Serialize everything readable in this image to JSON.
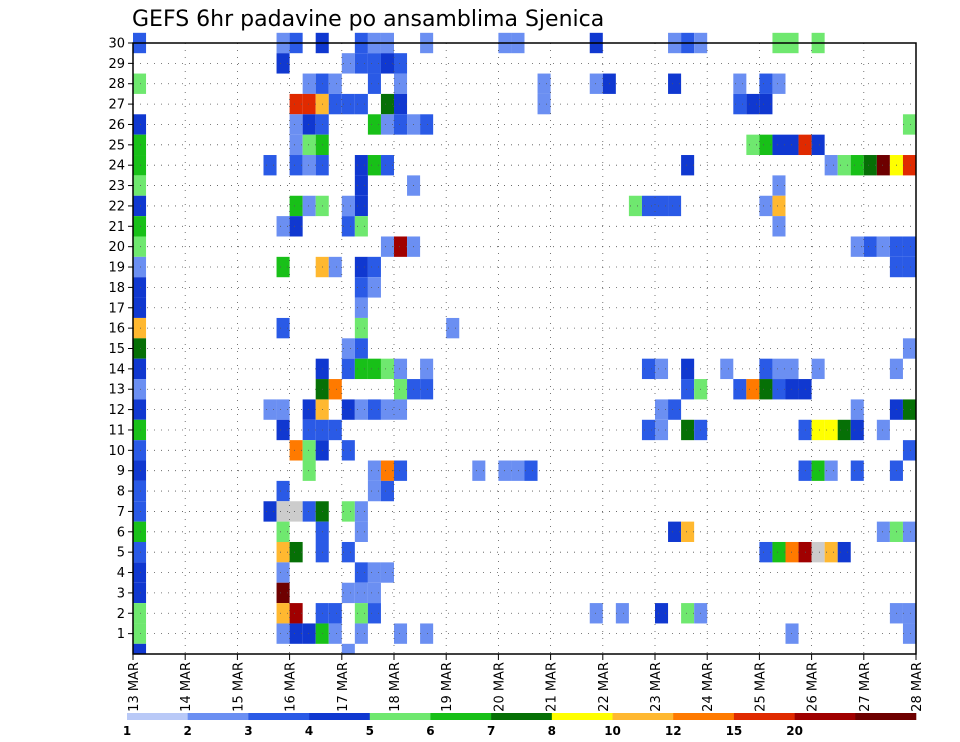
{
  "chart_data": {
    "type": "heatmap",
    "title": "GEFS 6hr padavine po ansamblima Sjenica",
    "xlabel": "",
    "ylabel": "",
    "x_range": [
      0,
      60
    ],
    "y_range": [
      0,
      30
    ],
    "x_ticks": [
      {
        "x": 0,
        "label": "13 MAR"
      },
      {
        "x": 4,
        "label": "14 MAR"
      },
      {
        "x": 8,
        "label": "15 MAR"
      },
      {
        "x": 12,
        "label": "16 MAR"
      },
      {
        "x": 16,
        "label": "17 MAR"
      },
      {
        "x": 20,
        "label": "18 MAR"
      },
      {
        "x": 24,
        "label": "19 MAR"
      },
      {
        "x": 28,
        "label": "20 MAR"
      },
      {
        "x": 32,
        "label": "21 MAR"
      },
      {
        "x": 36,
        "label": "22 MAR"
      },
      {
        "x": 40,
        "label": "23 MAR"
      },
      {
        "x": 44,
        "label": "24 MAR"
      },
      {
        "x": 48,
        "label": "25 MAR"
      },
      {
        "x": 52,
        "label": "26 MAR"
      },
      {
        "x": 56,
        "label": "27 MAR"
      },
      {
        "x": 60,
        "label": "28 MAR"
      }
    ],
    "y_ticks": [
      "1",
      "2",
      "3",
      "4",
      "5",
      "6",
      "7",
      "8",
      "9",
      "10",
      "11",
      "12",
      "13",
      "14",
      "15",
      "16",
      "17",
      "18",
      "19",
      "20",
      "21",
      "22",
      "23",
      "24",
      "25",
      "26",
      "27",
      "28",
      "29",
      "30"
    ],
    "grid": true,
    "colorbar": {
      "placement": "bottom",
      "labels": [
        "1",
        "2",
        "3",
        "4",
        "5",
        "6",
        "7",
        "8",
        "10",
        "12",
        "15",
        "20"
      ],
      "colors": [
        "#b9c9f7",
        "#6b8ff2",
        "#2a5ae6",
        "#1038d0",
        "#6fe86f",
        "#18c018",
        "#067006",
        "#ffff00",
        "#ffb830",
        "#ff7a00",
        "#e02a00",
        "#a00000",
        "#6e0000"
      ]
    },
    "cells": [
      [
        0,
        30,
        2
      ],
      [
        11,
        30,
        1
      ],
      [
        12,
        30,
        2
      ],
      [
        14,
        30,
        3
      ],
      [
        17,
        30,
        2
      ],
      [
        18,
        30,
        1
      ],
      [
        19,
        30,
        1
      ],
      [
        22,
        30,
        1
      ],
      [
        28,
        30,
        1
      ],
      [
        29,
        30,
        1
      ],
      [
        35,
        30,
        3
      ],
      [
        41,
        30,
        1
      ],
      [
        42,
        30,
        2
      ],
      [
        43,
        30,
        1
      ],
      [
        49,
        30,
        4
      ],
      [
        50,
        30,
        4
      ],
      [
        52,
        30,
        4
      ],
      [
        11,
        29,
        3
      ],
      [
        16,
        29,
        1
      ],
      [
        17,
        29,
        2
      ],
      [
        18,
        29,
        2
      ],
      [
        19,
        29,
        3
      ],
      [
        20,
        29,
        2
      ],
      [
        0,
        28,
        4
      ],
      [
        13,
        28,
        1
      ],
      [
        14,
        28,
        2
      ],
      [
        15,
        28,
        1
      ],
      [
        18,
        28,
        2
      ],
      [
        20,
        28,
        1
      ],
      [
        31,
        28,
        1
      ],
      [
        35,
        28,
        1
      ],
      [
        36,
        28,
        3
      ],
      [
        41,
        28,
        3
      ],
      [
        46,
        28,
        1
      ],
      [
        48,
        28,
        2
      ],
      [
        49,
        28,
        1
      ],
      [
        12,
        27,
        10
      ],
      [
        13,
        27,
        10
      ],
      [
        14,
        27,
        8
      ],
      [
        15,
        27,
        2
      ],
      [
        16,
        27,
        2
      ],
      [
        17,
        27,
        2
      ],
      [
        19,
        27,
        6
      ],
      [
        20,
        27,
        3
      ],
      [
        31,
        27,
        1
      ],
      [
        46,
        27,
        2
      ],
      [
        47,
        27,
        3
      ],
      [
        48,
        27,
        3
      ],
      [
        0,
        26,
        3
      ],
      [
        12,
        26,
        1
      ],
      [
        13,
        26,
        3
      ],
      [
        14,
        26,
        2
      ],
      [
        18,
        26,
        5
      ],
      [
        19,
        26,
        1
      ],
      [
        20,
        26,
        2
      ],
      [
        21,
        26,
        1
      ],
      [
        22,
        26,
        2
      ],
      [
        59,
        26,
        4
      ],
      [
        60,
        26,
        3
      ],
      [
        0,
        25,
        5
      ],
      [
        12,
        25,
        1
      ],
      [
        13,
        25,
        4
      ],
      [
        14,
        25,
        5
      ],
      [
        47,
        25,
        4
      ],
      [
        48,
        25,
        5
      ],
      [
        49,
        25,
        3
      ],
      [
        50,
        25,
        3
      ],
      [
        51,
        25,
        10
      ],
      [
        52,
        25,
        3
      ],
      [
        0,
        24,
        5
      ],
      [
        10,
        24,
        2
      ],
      [
        12,
        24,
        2
      ],
      [
        13,
        24,
        1
      ],
      [
        14,
        24,
        2
      ],
      [
        17,
        24,
        3
      ],
      [
        18,
        24,
        5
      ],
      [
        19,
        24,
        2
      ],
      [
        42,
        24,
        3
      ],
      [
        53,
        24,
        1
      ],
      [
        54,
        24,
        4
      ],
      [
        55,
        24,
        5
      ],
      [
        56,
        24,
        6
      ],
      [
        57,
        24,
        12
      ],
      [
        58,
        24,
        7
      ],
      [
        59,
        24,
        10
      ],
      [
        60,
        24,
        11
      ],
      [
        0,
        23,
        4
      ],
      [
        17,
        23,
        3
      ],
      [
        21,
        23,
        1
      ],
      [
        49,
        23,
        1
      ],
      [
        0,
        22,
        3
      ],
      [
        12,
        22,
        5
      ],
      [
        13,
        22,
        1
      ],
      [
        14,
        22,
        4
      ],
      [
        16,
        22,
        1
      ],
      [
        17,
        22,
        3
      ],
      [
        38,
        22,
        4
      ],
      [
        39,
        22,
        2
      ],
      [
        40,
        22,
        2
      ],
      [
        41,
        22,
        2
      ],
      [
        48,
        22,
        1
      ],
      [
        49,
        22,
        8
      ],
      [
        60,
        22,
        1
      ],
      [
        0,
        21,
        5
      ],
      [
        11,
        21,
        1
      ],
      [
        12,
        21,
        3
      ],
      [
        16,
        21,
        2
      ],
      [
        17,
        21,
        4
      ],
      [
        49,
        21,
        1
      ],
      [
        0,
        20,
        4
      ],
      [
        19,
        20,
        1
      ],
      [
        20,
        20,
        11
      ],
      [
        21,
        20,
        1
      ],
      [
        55,
        20,
        1
      ],
      [
        56,
        20,
        2
      ],
      [
        57,
        20,
        1
      ],
      [
        58,
        20,
        2
      ],
      [
        59,
        20,
        2
      ],
      [
        0,
        19,
        1
      ],
      [
        11,
        19,
        5
      ],
      [
        14,
        19,
        8
      ],
      [
        15,
        19,
        1
      ],
      [
        17,
        19,
        3
      ],
      [
        18,
        19,
        2
      ],
      [
        58,
        19,
        2
      ],
      [
        59,
        19,
        2
      ],
      [
        0,
        18,
        3
      ],
      [
        17,
        18,
        2
      ],
      [
        18,
        18,
        1
      ],
      [
        0,
        17,
        3
      ],
      [
        17,
        17,
        1
      ],
      [
        0,
        16,
        8
      ],
      [
        11,
        16,
        2
      ],
      [
        17,
        16,
        4
      ],
      [
        24,
        16,
        1
      ],
      [
        0,
        15,
        6
      ],
      [
        16,
        15,
        1
      ],
      [
        17,
        15,
        2
      ],
      [
        59,
        15,
        1
      ],
      [
        0,
        14,
        3
      ],
      [
        14,
        14,
        3
      ],
      [
        16,
        14,
        2
      ],
      [
        17,
        14,
        5
      ],
      [
        18,
        14,
        5
      ],
      [
        19,
        14,
        4
      ],
      [
        20,
        14,
        1
      ],
      [
        22,
        14,
        1
      ],
      [
        39,
        14,
        2
      ],
      [
        40,
        14,
        1
      ],
      [
        42,
        14,
        3
      ],
      [
        45,
        14,
        1
      ],
      [
        48,
        14,
        2
      ],
      [
        49,
        14,
        1
      ],
      [
        50,
        14,
        1
      ],
      [
        52,
        14,
        1
      ],
      [
        58,
        14,
        1
      ],
      [
        0,
        13,
        1
      ],
      [
        14,
        13,
        6
      ],
      [
        15,
        13,
        9
      ],
      [
        20,
        13,
        4
      ],
      [
        21,
        13,
        2
      ],
      [
        22,
        13,
        2
      ],
      [
        42,
        13,
        2
      ],
      [
        43,
        13,
        4
      ],
      [
        46,
        13,
        2
      ],
      [
        47,
        13,
        9
      ],
      [
        48,
        13,
        6
      ],
      [
        49,
        13,
        2
      ],
      [
        50,
        13,
        3
      ],
      [
        51,
        13,
        3
      ],
      [
        0,
        12,
        3
      ],
      [
        10,
        12,
        1
      ],
      [
        11,
        12,
        1
      ],
      [
        13,
        12,
        3
      ],
      [
        14,
        12,
        8
      ],
      [
        16,
        12,
        3
      ],
      [
        17,
        12,
        1
      ],
      [
        18,
        12,
        2
      ],
      [
        19,
        12,
        1
      ],
      [
        20,
        12,
        1
      ],
      [
        40,
        12,
        1
      ],
      [
        41,
        12,
        2
      ],
      [
        55,
        12,
        1
      ],
      [
        58,
        12,
        3
      ],
      [
        59,
        12,
        6
      ],
      [
        0,
        11,
        5
      ],
      [
        11,
        11,
        3
      ],
      [
        13,
        11,
        2
      ],
      [
        14,
        11,
        2
      ],
      [
        15,
        11,
        2
      ],
      [
        39,
        11,
        2
      ],
      [
        40,
        11,
        1
      ],
      [
        42,
        11,
        6
      ],
      [
        43,
        11,
        2
      ],
      [
        51,
        11,
        2
      ],
      [
        52,
        11,
        7
      ],
      [
        53,
        11,
        7
      ],
      [
        54,
        11,
        6
      ],
      [
        55,
        11,
        3
      ],
      [
        57,
        11,
        1
      ],
      [
        0,
        10,
        2
      ],
      [
        12,
        10,
        9
      ],
      [
        13,
        10,
        4
      ],
      [
        14,
        10,
        3
      ],
      [
        16,
        10,
        2
      ],
      [
        59,
        10,
        2
      ],
      [
        0,
        9,
        3
      ],
      [
        13,
        9,
        4
      ],
      [
        18,
        9,
        1
      ],
      [
        19,
        9,
        9
      ],
      [
        20,
        9,
        2
      ],
      [
        26,
        9,
        1
      ],
      [
        28,
        9,
        1
      ],
      [
        29,
        9,
        1
      ],
      [
        30,
        9,
        2
      ],
      [
        51,
        9,
        2
      ],
      [
        52,
        9,
        5
      ],
      [
        53,
        9,
        1
      ],
      [
        55,
        9,
        2
      ],
      [
        58,
        9,
        2
      ],
      [
        0,
        8,
        2
      ],
      [
        11,
        8,
        2
      ],
      [
        18,
        8,
        1
      ],
      [
        19,
        8,
        2
      ],
      [
        0,
        7,
        2
      ],
      [
        10,
        7,
        3
      ],
      [
        11,
        7,
        13
      ],
      [
        12,
        7,
        13
      ],
      [
        13,
        7,
        2
      ],
      [
        14,
        7,
        6
      ],
      [
        16,
        7,
        4
      ],
      [
        17,
        7,
        1
      ],
      [
        0,
        6,
        5
      ],
      [
        11,
        6,
        4
      ],
      [
        14,
        6,
        2
      ],
      [
        17,
        6,
        1
      ],
      [
        41,
        6,
        3
      ],
      [
        42,
        6,
        8
      ],
      [
        57,
        6,
        1
      ],
      [
        58,
        6,
        4
      ],
      [
        59,
        6,
        1
      ],
      [
        0,
        5,
        2
      ],
      [
        11,
        5,
        8
      ],
      [
        12,
        5,
        6
      ],
      [
        14,
        5,
        2
      ],
      [
        16,
        5,
        2
      ],
      [
        48,
        5,
        2
      ],
      [
        49,
        5,
        5
      ],
      [
        50,
        5,
        9
      ],
      [
        51,
        5,
        11
      ],
      [
        52,
        5,
        13
      ],
      [
        53,
        5,
        8
      ],
      [
        54,
        5,
        3
      ],
      [
        0,
        4,
        3
      ],
      [
        11,
        4,
        1
      ],
      [
        17,
        4,
        2
      ],
      [
        18,
        4,
        1
      ],
      [
        19,
        4,
        1
      ],
      [
        0,
        3,
        3
      ],
      [
        11,
        3,
        12
      ],
      [
        16,
        3,
        1
      ],
      [
        17,
        3,
        1
      ],
      [
        18,
        3,
        1
      ],
      [
        0,
        2,
        4
      ],
      [
        11,
        2,
        8
      ],
      [
        12,
        2,
        11
      ],
      [
        14,
        2,
        2
      ],
      [
        15,
        2,
        2
      ],
      [
        17,
        2,
        4
      ],
      [
        18,
        2,
        2
      ],
      [
        35,
        2,
        1
      ],
      [
        37,
        2,
        1
      ],
      [
        40,
        2,
        3
      ],
      [
        42,
        2,
        4
      ],
      [
        43,
        2,
        1
      ],
      [
        58,
        2,
        1
      ],
      [
        59,
        2,
        1
      ],
      [
        0,
        1,
        4
      ],
      [
        11,
        1,
        1
      ],
      [
        12,
        1,
        3
      ],
      [
        13,
        1,
        3
      ],
      [
        14,
        1,
        5
      ],
      [
        15,
        1,
        1
      ],
      [
        17,
        1,
        1
      ],
      [
        20,
        1,
        1
      ],
      [
        22,
        1,
        1
      ],
      [
        50,
        1,
        1
      ],
      [
        59,
        1,
        1
      ],
      [
        0,
        0,
        3
      ],
      [
        16,
        0,
        1
      ]
    ]
  }
}
